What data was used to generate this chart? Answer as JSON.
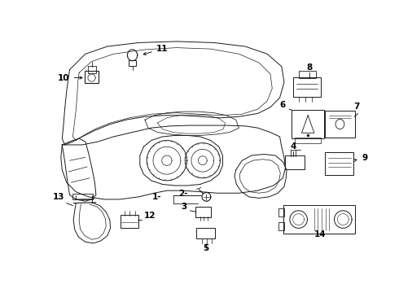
{
  "bg_color": "#ffffff",
  "line_color": "#1a1a1a",
  "label_color": "#000000",
  "label_fs": 7.5,
  "lw": 0.7
}
